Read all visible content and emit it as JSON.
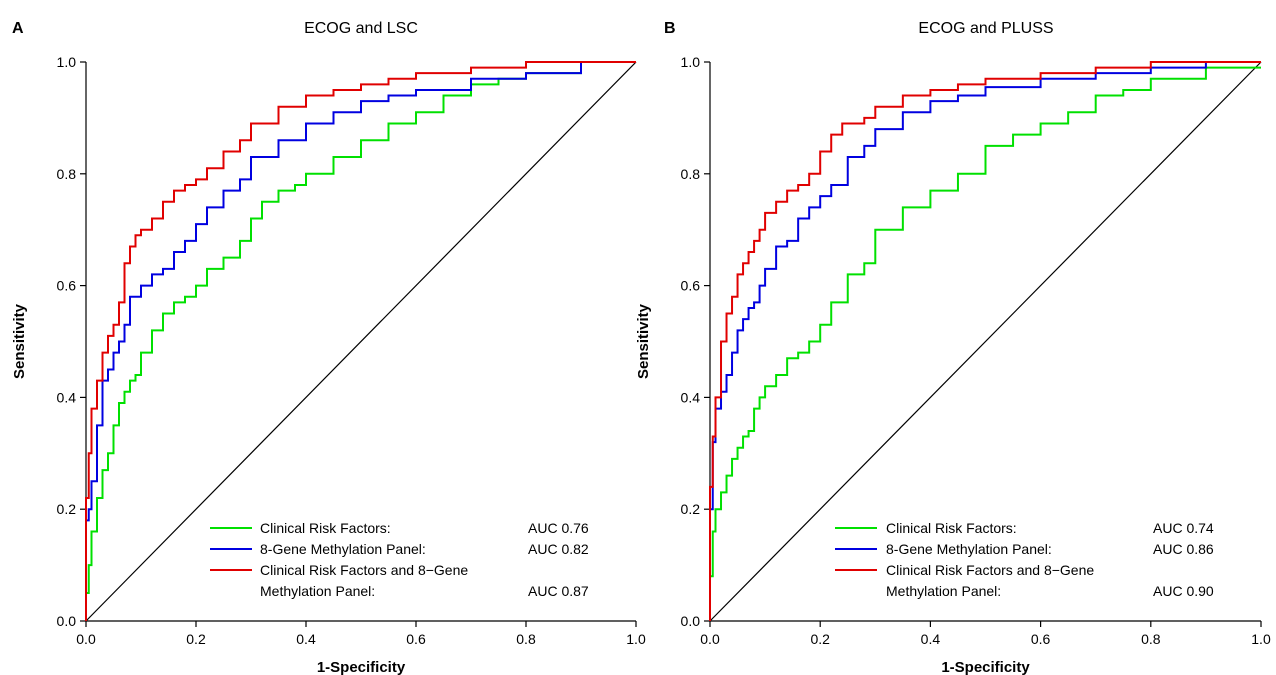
{
  "chart_data": [
    {
      "type": "line",
      "panel_label": "A",
      "title": "ECOG and LSC",
      "xlabel": "1-Specificity",
      "ylabel": "Sensitivity",
      "xlim": [
        0,
        1
      ],
      "ylim": [
        0,
        1
      ],
      "xticks": [
        "0.0",
        "0.2",
        "0.4",
        "0.6",
        "0.8",
        "1.0"
      ],
      "yticks": [
        "0.0",
        "0.2",
        "0.4",
        "0.6",
        "0.8",
        "1.0"
      ],
      "grid": false,
      "legend_position": "bottom-right",
      "reference_line": [
        [
          0,
          0
        ],
        [
          1,
          1
        ]
      ],
      "series": [
        {
          "name": "Clinical Risk Factors:",
          "auc": "AUC 0.76",
          "color": "#00e000",
          "x": [
            0,
            0.005,
            0.01,
            0.02,
            0.03,
            0.04,
            0.05,
            0.06,
            0.07,
            0.08,
            0.09,
            0.1,
            0.12,
            0.14,
            0.16,
            0.18,
            0.2,
            0.22,
            0.25,
            0.28,
            0.3,
            0.32,
            0.35,
            0.38,
            0.4,
            0.45,
            0.5,
            0.55,
            0.6,
            0.65,
            0.7,
            0.75,
            0.8,
            0.9,
            1.0
          ],
          "y": [
            0,
            0.05,
            0.1,
            0.16,
            0.22,
            0.27,
            0.3,
            0.35,
            0.39,
            0.41,
            0.43,
            0.44,
            0.48,
            0.52,
            0.55,
            0.57,
            0.58,
            0.6,
            0.63,
            0.65,
            0.68,
            0.72,
            0.75,
            0.77,
            0.78,
            0.8,
            0.83,
            0.86,
            0.89,
            0.91,
            0.94,
            0.96,
            0.97,
            0.98,
            1.0
          ]
        },
        {
          "name": "8-Gene Methylation Panel:",
          "auc": "AUC 0.82",
          "color": "#0000e0",
          "x": [
            0,
            0.005,
            0.01,
            0.02,
            0.03,
            0.04,
            0.05,
            0.06,
            0.07,
            0.08,
            0.1,
            0.12,
            0.14,
            0.16,
            0.18,
            0.2,
            0.22,
            0.25,
            0.28,
            0.3,
            0.35,
            0.4,
            0.45,
            0.5,
            0.55,
            0.6,
            0.7,
            0.8,
            0.9,
            1.0
          ],
          "y": [
            0,
            0.18,
            0.2,
            0.25,
            0.35,
            0.43,
            0.45,
            0.48,
            0.5,
            0.53,
            0.58,
            0.6,
            0.62,
            0.63,
            0.66,
            0.68,
            0.71,
            0.74,
            0.77,
            0.79,
            0.83,
            0.86,
            0.89,
            0.91,
            0.93,
            0.94,
            0.95,
            0.97,
            0.98,
            1.0
          ]
        },
        {
          "name": "Clinical Risk Factors and 8−Gene Methylation Panel:",
          "auc": "AUC 0.87",
          "color": "#e00000",
          "x": [
            0,
            0.005,
            0.01,
            0.02,
            0.03,
            0.04,
            0.05,
            0.06,
            0.07,
            0.08,
            0.09,
            0.1,
            0.12,
            0.14,
            0.16,
            0.18,
            0.2,
            0.22,
            0.25,
            0.28,
            0.3,
            0.35,
            0.4,
            0.45,
            0.5,
            0.55,
            0.6,
            0.7,
            0.8,
            0.9,
            1.0
          ],
          "y": [
            0,
            0.22,
            0.3,
            0.38,
            0.43,
            0.48,
            0.51,
            0.53,
            0.57,
            0.64,
            0.67,
            0.69,
            0.7,
            0.72,
            0.75,
            0.77,
            0.78,
            0.79,
            0.81,
            0.84,
            0.86,
            0.89,
            0.92,
            0.94,
            0.95,
            0.96,
            0.97,
            0.98,
            0.99,
            1.0,
            1.0
          ]
        }
      ]
    },
    {
      "type": "line",
      "panel_label": "B",
      "title": "ECOG and PLUSS",
      "xlabel": "1-Specificity",
      "ylabel": "Sensitivity",
      "xlim": [
        0,
        1
      ],
      "ylim": [
        0,
        1
      ],
      "xticks": [
        "0.0",
        "0.2",
        "0.4",
        "0.6",
        "0.8",
        "1.0"
      ],
      "yticks": [
        "0.0",
        "0.2",
        "0.4",
        "0.6",
        "0.8",
        "1.0"
      ],
      "grid": false,
      "legend_position": "bottom-right",
      "reference_line": [
        [
          0,
          0
        ],
        [
          1,
          1
        ]
      ],
      "series": [
        {
          "name": "Clinical Risk Factors:",
          "auc": "AUC 0.74",
          "color": "#00e000",
          "x": [
            0,
            0.005,
            0.01,
            0.02,
            0.03,
            0.04,
            0.05,
            0.06,
            0.07,
            0.08,
            0.09,
            0.1,
            0.12,
            0.14,
            0.16,
            0.18,
            0.2,
            0.22,
            0.25,
            0.28,
            0.3,
            0.35,
            0.4,
            0.45,
            0.5,
            0.55,
            0.6,
            0.65,
            0.7,
            0.75,
            0.8,
            0.9,
            1.0
          ],
          "y": [
            0,
            0.08,
            0.16,
            0.2,
            0.23,
            0.26,
            0.29,
            0.31,
            0.33,
            0.34,
            0.38,
            0.4,
            0.42,
            0.44,
            0.47,
            0.48,
            0.5,
            0.53,
            0.57,
            0.62,
            0.64,
            0.7,
            0.74,
            0.77,
            0.8,
            0.85,
            0.87,
            0.89,
            0.91,
            0.94,
            0.95,
            0.97,
            0.99
          ]
        },
        {
          "name": "8-Gene Methylation Panel:",
          "auc": "AUC 0.86",
          "color": "#0000e0",
          "x": [
            0,
            0.005,
            0.01,
            0.02,
            0.03,
            0.04,
            0.05,
            0.06,
            0.07,
            0.08,
            0.09,
            0.1,
            0.12,
            0.14,
            0.16,
            0.18,
            0.2,
            0.22,
            0.25,
            0.28,
            0.3,
            0.35,
            0.4,
            0.45,
            0.5,
            0.6,
            0.7,
            0.8,
            0.9,
            1.0
          ],
          "y": [
            0,
            0.2,
            0.32,
            0.38,
            0.41,
            0.44,
            0.48,
            0.52,
            0.54,
            0.56,
            0.57,
            0.6,
            0.63,
            0.67,
            0.68,
            0.72,
            0.74,
            0.76,
            0.78,
            0.83,
            0.85,
            0.88,
            0.91,
            0.93,
            0.94,
            0.955,
            0.97,
            0.98,
            0.99,
            1.0
          ]
        },
        {
          "name": "Clinical Risk Factors and 8−Gene Methylation Panel:",
          "auc": "AUC 0.90",
          "color": "#e00000",
          "x": [
            0,
            0.005,
            0.01,
            0.02,
            0.03,
            0.04,
            0.05,
            0.06,
            0.07,
            0.08,
            0.09,
            0.1,
            0.12,
            0.14,
            0.16,
            0.18,
            0.2,
            0.22,
            0.24,
            0.26,
            0.28,
            0.3,
            0.35,
            0.4,
            0.45,
            0.5,
            0.6,
            0.7,
            0.8,
            0.9,
            1.0
          ],
          "y": [
            0,
            0.24,
            0.33,
            0.4,
            0.5,
            0.55,
            0.58,
            0.62,
            0.64,
            0.66,
            0.68,
            0.7,
            0.73,
            0.75,
            0.77,
            0.78,
            0.8,
            0.84,
            0.87,
            0.89,
            0.89,
            0.9,
            0.92,
            0.94,
            0.95,
            0.96,
            0.97,
            0.98,
            0.99,
            1.0,
            1.0
          ]
        }
      ]
    }
  ]
}
